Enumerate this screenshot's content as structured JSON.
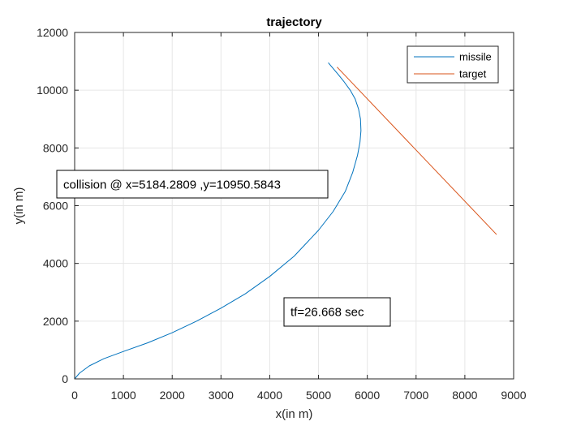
{
  "chart_data": {
    "type": "line",
    "title": "trajectory",
    "xlabel": "x(in m)",
    "ylabel": "y(in m)",
    "xlim": [
      0,
      9000
    ],
    "ylim": [
      0,
      12000
    ],
    "x_ticks": [
      0,
      1000,
      2000,
      3000,
      4000,
      5000,
      6000,
      7000,
      8000,
      9000
    ],
    "y_ticks": [
      0,
      2000,
      4000,
      6000,
      8000,
      10000,
      12000
    ],
    "grid": true,
    "legend_position": "top-right",
    "series": [
      {
        "name": "missile",
        "color": "#0072BD",
        "x": [
          0,
          100,
          300,
          600,
          1000,
          1500,
          2000,
          2500,
          3000,
          3500,
          4000,
          4500,
          5000,
          5300,
          5550,
          5700,
          5800,
          5850,
          5870,
          5860,
          5820,
          5750,
          5650,
          5520,
          5400,
          5300,
          5200
        ],
        "y": [
          0,
          200,
          450,
          700,
          950,
          1250,
          1600,
          2000,
          2450,
          2950,
          3550,
          4250,
          5150,
          5800,
          6500,
          7150,
          7750,
          8200,
          8600,
          9000,
          9350,
          9700,
          10000,
          10300,
          10550,
          10750,
          10950
        ]
      },
      {
        "name": "target",
        "color": "#D95319",
        "x": [
          8650,
          5380
        ],
        "y": [
          5000,
          10800
        ]
      }
    ],
    "annotations": [
      {
        "text": "collision @ x=5184.2809 ,y=10950.5843"
      },
      {
        "text": "tf=26.668 sec"
      }
    ]
  }
}
